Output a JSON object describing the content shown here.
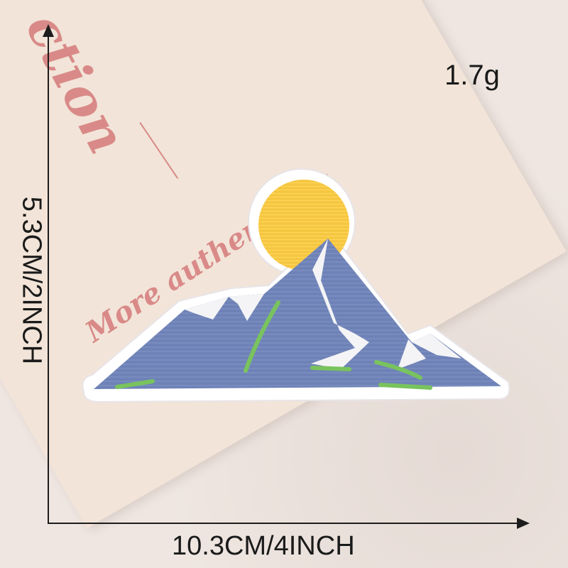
{
  "card": {
    "script_text": "ction",
    "tagline": "More authenticity"
  },
  "labels": {
    "weight": "1.7g",
    "width": "10.3CM/4INCH",
    "height": "5.3CM/2INCH"
  },
  "colors": {
    "mountain": "#6f82b7",
    "sun": "#f6c640",
    "grass": "#79c35e",
    "snow": "#f4f4f6",
    "border": "#ffffff",
    "card_text": "#d98a88"
  }
}
